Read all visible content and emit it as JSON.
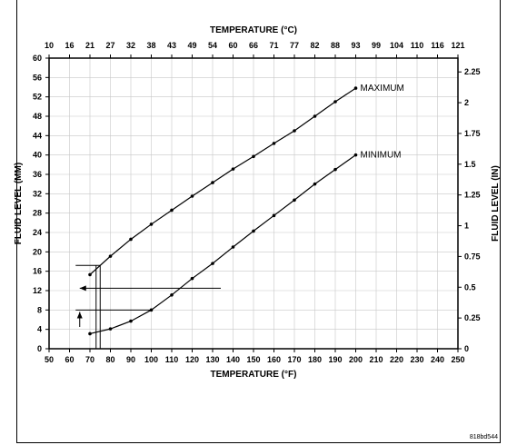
{
  "chart_data": {
    "type": "line",
    "title_top": "TEMPERATURE (°C)",
    "xlabel": "TEMPERATURE (°F)",
    "ylabel_left": "FLUID LEVEL (MM)",
    "ylabel_right": "FLUID LEVEL (IN)",
    "x_ticks": [
      "50",
      "60",
      "70",
      "80",
      "90",
      "100",
      "110",
      "120",
      "130",
      "140",
      "150",
      "160",
      "170",
      "180",
      "190",
      "200",
      "210",
      "220",
      "230",
      "240",
      "250"
    ],
    "x_ticks_values": [
      50,
      60,
      70,
      80,
      90,
      100,
      110,
      120,
      130,
      140,
      150,
      160,
      170,
      180,
      190,
      200,
      210,
      220,
      230,
      240,
      250
    ],
    "xlim": [
      50,
      250
    ],
    "top_ticks": [
      "10",
      "16",
      "21",
      "27",
      "32",
      "38",
      "43",
      "49",
      "54",
      "60",
      "66",
      "71",
      "77",
      "82",
      "88",
      "93",
      "99",
      "104",
      "110",
      "116",
      "121"
    ],
    "y_ticks": [
      "0",
      "4",
      "8",
      "12",
      "16",
      "20",
      "24",
      "28",
      "32",
      "36",
      "40",
      "44",
      "48",
      "52",
      "56",
      "60"
    ],
    "y_ticks_values": [
      0,
      4,
      8,
      12,
      16,
      20,
      24,
      28,
      32,
      36,
      40,
      44,
      48,
      52,
      56,
      60
    ],
    "ylim": [
      0,
      60
    ],
    "right_ticks": [
      "0",
      "0.25",
      "0.5",
      "0.75",
      "1",
      "1.25",
      "1.5",
      "1.75",
      "2",
      "2.25"
    ],
    "right_ticks_values": [
      0,
      0.25,
      0.5,
      0.75,
      1,
      1.25,
      1.5,
      1.75,
      2,
      2.25
    ],
    "grid": true,
    "series": [
      {
        "name": "MAXIMUM",
        "x": [
          70,
          80,
          90,
          100,
          110,
          120,
          130,
          140,
          150,
          160,
          170,
          180,
          190,
          200
        ],
        "y": [
          15.3,
          19.1,
          22.6,
          25.7,
          28.6,
          31.5,
          34.3,
          37.1,
          39.7,
          42.4,
          45.0,
          48.0,
          51.0,
          53.8
        ]
      },
      {
        "name": "MINIMUM",
        "x": [
          70,
          80,
          90,
          100,
          110,
          120,
          130,
          140,
          150,
          160,
          170,
          180,
          190,
          200
        ],
        "y": [
          3.1,
          4.1,
          5.7,
          8.0,
          11.1,
          14.5,
          17.6,
          21.0,
          24.3,
          27.5,
          30.7,
          34.0,
          37.0,
          40.0
        ]
      }
    ],
    "example_lines": [
      {
        "x": [
          63,
          75
        ],
        "y": [
          17.2,
          17.2
        ]
      },
      {
        "x": [
          75,
          75
        ],
        "y": [
          17.2,
          0
        ]
      },
      {
        "x": [
          73,
          73
        ],
        "y": [
          17.2,
          0
        ]
      },
      {
        "x": [
          63,
          100
        ],
        "y": [
          8.0,
          8.0
        ]
      },
      {
        "x": [
          65,
          134
        ],
        "y": [
          12.5,
          12.5
        ],
        "arrow": "left"
      },
      {
        "x": [
          65,
          65
        ],
        "y": [
          4.5,
          7.6
        ],
        "arrow": "up"
      }
    ]
  },
  "figure_code": "818bd544"
}
